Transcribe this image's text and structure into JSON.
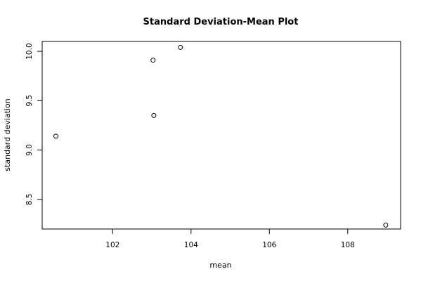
{
  "chart_data": {
    "type": "scatter",
    "title": "Standard Deviation-Mean Plot",
    "xlabel": "mean",
    "ylabel": "standard deviation",
    "xlim": [
      100.2,
      109.35
    ],
    "ylim": [
      8.2,
      10.1
    ],
    "x_ticks": [
      102,
      104,
      106,
      108
    ],
    "x_tick_labels": [
      "102",
      "104",
      "106",
      "108"
    ],
    "y_ticks": [
      8.5,
      9.0,
      9.5,
      10.0
    ],
    "y_tick_labels": [
      "8.5",
      "9.0",
      "9.5",
      "10.0"
    ],
    "grid": false,
    "points": [
      {
        "x": 100.55,
        "y": 9.14
      },
      {
        "x": 103.03,
        "y": 9.91
      },
      {
        "x": 103.05,
        "y": 9.35
      },
      {
        "x": 103.73,
        "y": 10.04
      },
      {
        "x": 108.97,
        "y": 8.24
      }
    ]
  }
}
